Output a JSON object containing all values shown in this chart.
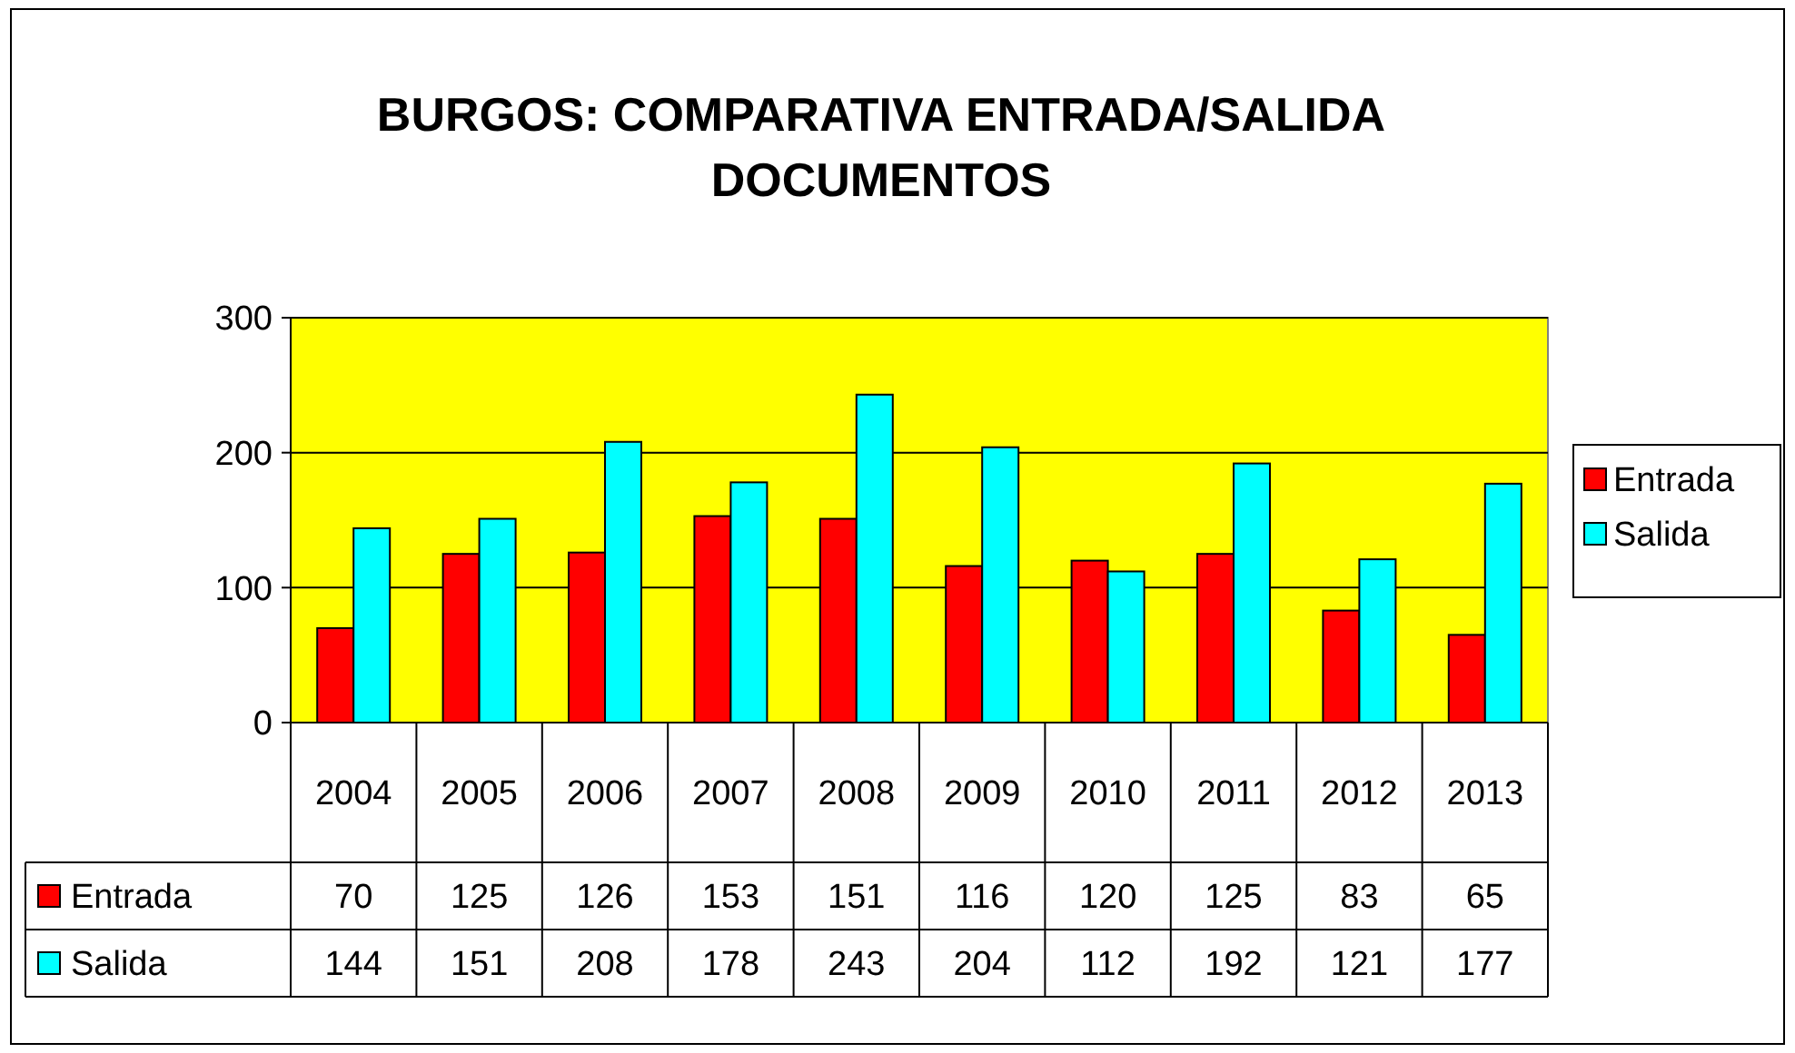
{
  "chart_data": {
    "type": "bar",
    "title": "BURGOS: COMPARATIVA ENTRADA/SALIDA DOCUMENTOS",
    "categories": [
      "2004",
      "2005",
      "2006",
      "2007",
      "2008",
      "2009",
      "2010",
      "2011",
      "2012",
      "2013"
    ],
    "series": [
      {
        "name": "Entrada",
        "color": "#ff0000",
        "values": [
          70,
          125,
          126,
          153,
          151,
          116,
          120,
          125,
          83,
          65
        ]
      },
      {
        "name": "Salida",
        "color": "#00ffff",
        "values": [
          144,
          151,
          208,
          178,
          243,
          204,
          112,
          192,
          121,
          177
        ]
      }
    ],
    "ylim": [
      0,
      300
    ],
    "yticks": [
      0,
      100,
      200,
      300
    ],
    "grid": "y",
    "legend": "right",
    "data_labels": true
  }
}
